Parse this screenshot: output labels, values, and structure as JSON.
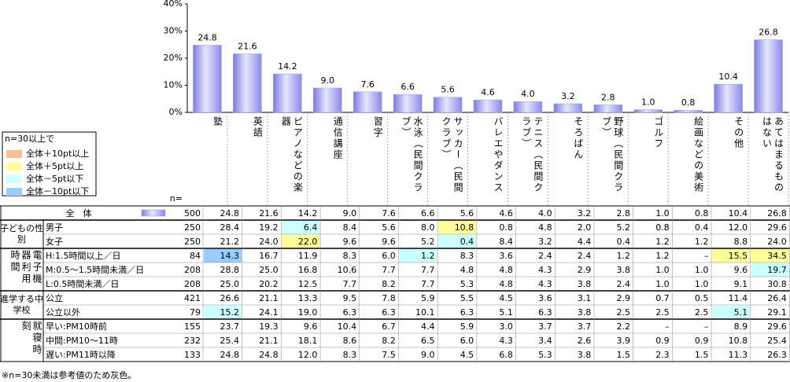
{
  "chart_data": {
    "type": "bar",
    "categories": [
      "塾",
      "英語",
      "ピアノなどの楽器",
      "通信講座",
      "習字",
      "水泳（民間クラブ）",
      "サッカー（民間クラブ）",
      "バレエやダンス",
      "テニス（民間クラブ）",
      "そろばん",
      "野球（民間クラブ）",
      "ゴルフ",
      "絵画などの美術",
      "その他",
      "あてはまるものはない"
    ],
    "values": [
      24.8,
      21.6,
      14.2,
      9.0,
      7.6,
      6.6,
      5.6,
      4.6,
      4.0,
      3.2,
      2.8,
      1.0,
      0.8,
      10.4,
      26.8
    ],
    "value_labels": [
      "24.8",
      "21.6",
      "14.2",
      "9.0",
      "7.6",
      "6.6",
      "5.6",
      "4.6",
      "4.0",
      "3.2",
      "2.8",
      "1.0",
      "0.8",
      "10.4",
      "26.8"
    ],
    "color": "#9a9aee",
    "ylim": [
      0,
      40
    ],
    "yticks": [
      {
        "value": 0,
        "label": "0%"
      },
      {
        "value": 10,
        "label": "10%"
      },
      {
        "value": 20,
        "label": "20%"
      },
      {
        "value": 30,
        "label": "30%"
      },
      {
        "value": 40,
        "label": "40%"
      }
    ]
  },
  "legend": {
    "title": "n=30以上で",
    "items": [
      {
        "label": "全体＋10pt以上",
        "color": "#fac090"
      },
      {
        "label": "全体＋5pt以上",
        "color": "#ffff99"
      },
      {
        "label": "全体－5pt以下",
        "color": "#ccffff"
      },
      {
        "label": "全体－10pt以下",
        "color": "#99ccff"
      }
    ]
  },
  "table": {
    "n_header": "n=",
    "total": {
      "label": "全　体",
      "n": "500",
      "cells": [
        "24.8",
        "21.6",
        "14.2",
        "9.0",
        "7.6",
        "6.6",
        "5.6",
        "4.6",
        "4.0",
        "3.2",
        "2.8",
        "1.0",
        "0.8",
        "10.4",
        "26.8"
      ]
    },
    "groups": [
      {
        "label": "子どもの性別",
        "vertical": false,
        "rows": [
          {
            "label": "男子",
            "n": "250",
            "cells": [
              "28.4",
              "19.2",
              "6.4",
              "8.4",
              "5.6",
              "8.0",
              "10.8",
              "0.8",
              "4.8",
              "2.0",
              "5.2",
              "0.8",
              "0.4",
              "12.0",
              "29.6"
            ],
            "colors": [
              null,
              null,
              "#ccffff",
              null,
              null,
              null,
              "#ffff99",
              null,
              null,
              null,
              null,
              null,
              null,
              null,
              null
            ]
          },
          {
            "label": "女子",
            "n": "250",
            "cells": [
              "21.2",
              "24.0",
              "22.0",
              "9.6",
              "9.6",
              "5.2",
              "0.4",
              "8.4",
              "3.2",
              "4.4",
              "0.4",
              "1.2",
              "1.2",
              "8.8",
              "24.0"
            ],
            "colors": [
              null,
              null,
              "#ffff99",
              null,
              null,
              null,
              "#ccffff",
              null,
              null,
              null,
              null,
              null,
              null,
              null,
              null
            ]
          }
        ]
      },
      {
        "label": "電子機器利用時間",
        "vertical": true,
        "rows": [
          {
            "label": "H:1.5時間以上／日",
            "n": "84",
            "cells": [
              "14.3",
              "16.7",
              "11.9",
              "8.3",
              "6.0",
              "1.2",
              "8.3",
              "3.6",
              "2.4",
              "2.4",
              "1.2",
              "1.2",
              "–",
              "15.5",
              "34.5"
            ],
            "colors": [
              "#99ccff",
              null,
              null,
              null,
              null,
              "#ccffff",
              null,
              null,
              null,
              null,
              null,
              null,
              null,
              "#ffff99",
              "#ffff99"
            ]
          },
          {
            "label": "M:0.5～1.5時間未満／日",
            "n": "208",
            "cells": [
              "28.8",
              "25.0",
              "16.8",
              "10.6",
              "7.7",
              "7.7",
              "4.8",
              "4.8",
              "4.3",
              "2.9",
              "3.8",
              "1.0",
              "1.0",
              "9.6",
              "19.7"
            ],
            "colors": [
              null,
              null,
              null,
              null,
              null,
              null,
              null,
              null,
              null,
              null,
              null,
              null,
              null,
              null,
              "#ccffff"
            ]
          },
          {
            "label": "L:0.5時間未満／日",
            "n": "208",
            "cells": [
              "25.0",
              "20.2",
              "12.5",
              "7.7",
              "8.2",
              "7.7",
              "5.3",
              "4.8",
              "4.3",
              "3.8",
              "2.4",
              "1.0",
              "1.0",
              "9.1",
              "30.8"
            ],
            "colors": [
              null,
              null,
              null,
              null,
              null,
              null,
              null,
              null,
              null,
              null,
              null,
              null,
              null,
              null,
              null
            ]
          }
        ]
      },
      {
        "label": "進学する中学校",
        "vertical": false,
        "rows": [
          {
            "label": "公立",
            "n": "421",
            "cells": [
              "26.6",
              "21.1",
              "13.3",
              "9.5",
              "7.8",
              "5.9",
              "5.5",
              "4.5",
              "3.6",
              "3.1",
              "2.9",
              "0.7",
              "0.5",
              "11.4",
              "26.4"
            ],
            "colors": [
              null,
              null,
              null,
              null,
              null,
              null,
              null,
              null,
              null,
              null,
              null,
              null,
              null,
              null,
              null
            ]
          },
          {
            "label": "公立以外",
            "n": "79",
            "cells": [
              "15.2",
              "24.1",
              "19.0",
              "6.3",
              "6.3",
              "10.1",
              "6.3",
              "5.1",
              "6.3",
              "3.8",
              "2.5",
              "2.5",
              "2.5",
              "5.1",
              "29.1"
            ],
            "colors": [
              "#ccffff",
              null,
              null,
              null,
              null,
              null,
              null,
              null,
              null,
              null,
              null,
              null,
              null,
              "#ccffff",
              null
            ]
          }
        ]
      },
      {
        "label": "就寝時刻",
        "vertical": true,
        "rows": [
          {
            "label": "早い:PM10時前",
            "n": "155",
            "cells": [
              "23.7",
              "19.3",
              "9.6",
              "10.4",
              "6.7",
              "4.4",
              "5.9",
              "3.0",
              "3.7",
              "3.7",
              "2.2",
              "–",
              "–",
              "8.9",
              "29.6"
            ],
            "colors": [
              null,
              null,
              null,
              null,
              null,
              null,
              null,
              null,
              null,
              null,
              null,
              null,
              null,
              null,
              null
            ]
          },
          {
            "label": "中間:PM10～11時",
            "n": "232",
            "cells": [
              "25.4",
              "21.1",
              "18.1",
              "8.6",
              "8.2",
              "6.5",
              "6.0",
              "4.3",
              "3.4",
              "2.6",
              "3.9",
              "0.9",
              "0.9",
              "10.8",
              "25.4"
            ],
            "colors": [
              null,
              null,
              null,
              null,
              null,
              null,
              null,
              null,
              null,
              null,
              null,
              null,
              null,
              null,
              null
            ]
          },
          {
            "label": "遅い:PM11時以降",
            "n": "133",
            "cells": [
              "24.8",
              "24.8",
              "12.0",
              "8.3",
              "7.5",
              "9.0",
              "4.5",
              "6.8",
              "5.3",
              "3.8",
              "1.5",
              "2.3",
              "1.5",
              "11.3",
              "26.3"
            ],
            "colors": [
              null,
              null,
              null,
              null,
              null,
              null,
              null,
              null,
              null,
              null,
              null,
              null,
              null,
              null,
              null
            ]
          }
        ]
      }
    ]
  },
  "footnote": "※n=30未満は参考値のため灰色。"
}
